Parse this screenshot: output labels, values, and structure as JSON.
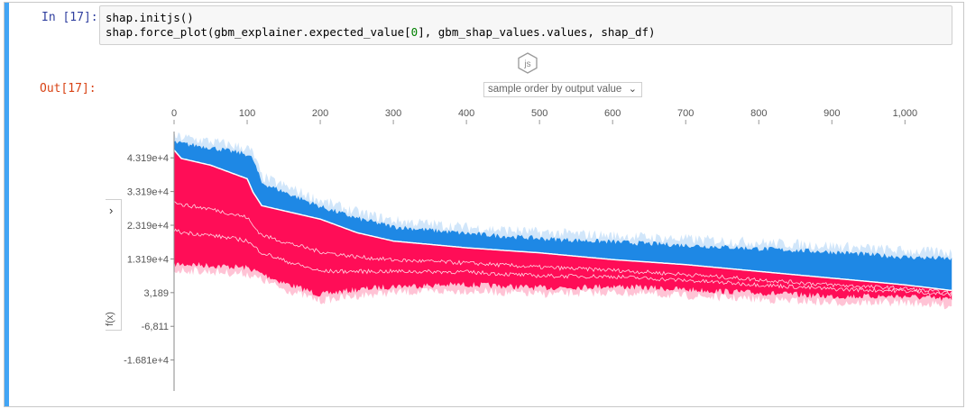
{
  "cell": {
    "in_prompt": "In [17]:",
    "out_prompt": "Out[17]:",
    "code_line1": "shap.initjs()",
    "code_line2_pre": "shap.force_plot(gbm_explainer.expected_value[",
    "code_line2_num": "0",
    "code_line2_post": "], gbm_shap_values.values, shap_df)",
    "js_badge": "js"
  },
  "controls": {
    "order_select": "sample order by output value",
    "side_toggle_icon": "chevron-right-icon",
    "side_label": "f(x)"
  },
  "colors": {
    "positive": "#ff0d57",
    "positive_light": "#ffc3d5",
    "negative": "#1e88e5",
    "negative_light": "#d1e6fa",
    "cell_bar": "#42a5f5"
  },
  "chart_data": {
    "type": "area",
    "x_ticks": [
      "0",
      "100",
      "200",
      "300",
      "400",
      "500",
      "600",
      "700",
      "800",
      "900",
      "1,000"
    ],
    "x_tick_values": [
      0,
      100,
      200,
      300,
      400,
      500,
      600,
      700,
      800,
      900,
      1000
    ],
    "xlim": [
      0,
      1065
    ],
    "y_ticks": [
      "4.319e+4",
      "3.319e+4",
      "2.319e+4",
      "1.319e+4",
      "3,189",
      "-6,811",
      "-1.681e+4"
    ],
    "y_tick_values": [
      43190,
      33190,
      23190,
      13190,
      3189,
      -6811,
      -16810
    ],
    "ylim": [
      -26000,
      51000
    ],
    "ylabel": "f(x)",
    "series": [
      {
        "role": "prediction",
        "x": [
          0,
          10,
          50,
          100,
          108,
          120,
          200,
          250,
          300,
          400,
          500,
          600,
          700,
          800,
          900,
          1000,
          1065
        ],
        "values": [
          45500,
          43000,
          41000,
          37000,
          33000,
          29000,
          25000,
          21000,
          18500,
          16500,
          15000,
          13000,
          11500,
          9500,
          7500,
          5500,
          3800
        ]
      },
      {
        "role": "positive_lower",
        "x": [
          0,
          20,
          100,
          150,
          200,
          250,
          300,
          400,
          500,
          600,
          700,
          800,
          900,
          1000,
          1065
        ],
        "values": [
          12500,
          12500,
          11500,
          7000,
          3500,
          5000,
          6000,
          6500,
          5500,
          6000,
          5000,
          4000,
          3000,
          3000,
          2000
        ]
      },
      {
        "role": "negative_upper",
        "x": [
          0,
          50,
          100,
          108,
          120,
          200,
          250,
          300,
          400,
          500,
          600,
          700,
          800,
          900,
          1000,
          1065
        ],
        "values": [
          47000,
          45500,
          43500,
          42000,
          35000,
          28000,
          24500,
          22000,
          20000,
          18500,
          17500,
          16500,
          15500,
          14500,
          13000,
          12500
        ]
      }
    ]
  }
}
